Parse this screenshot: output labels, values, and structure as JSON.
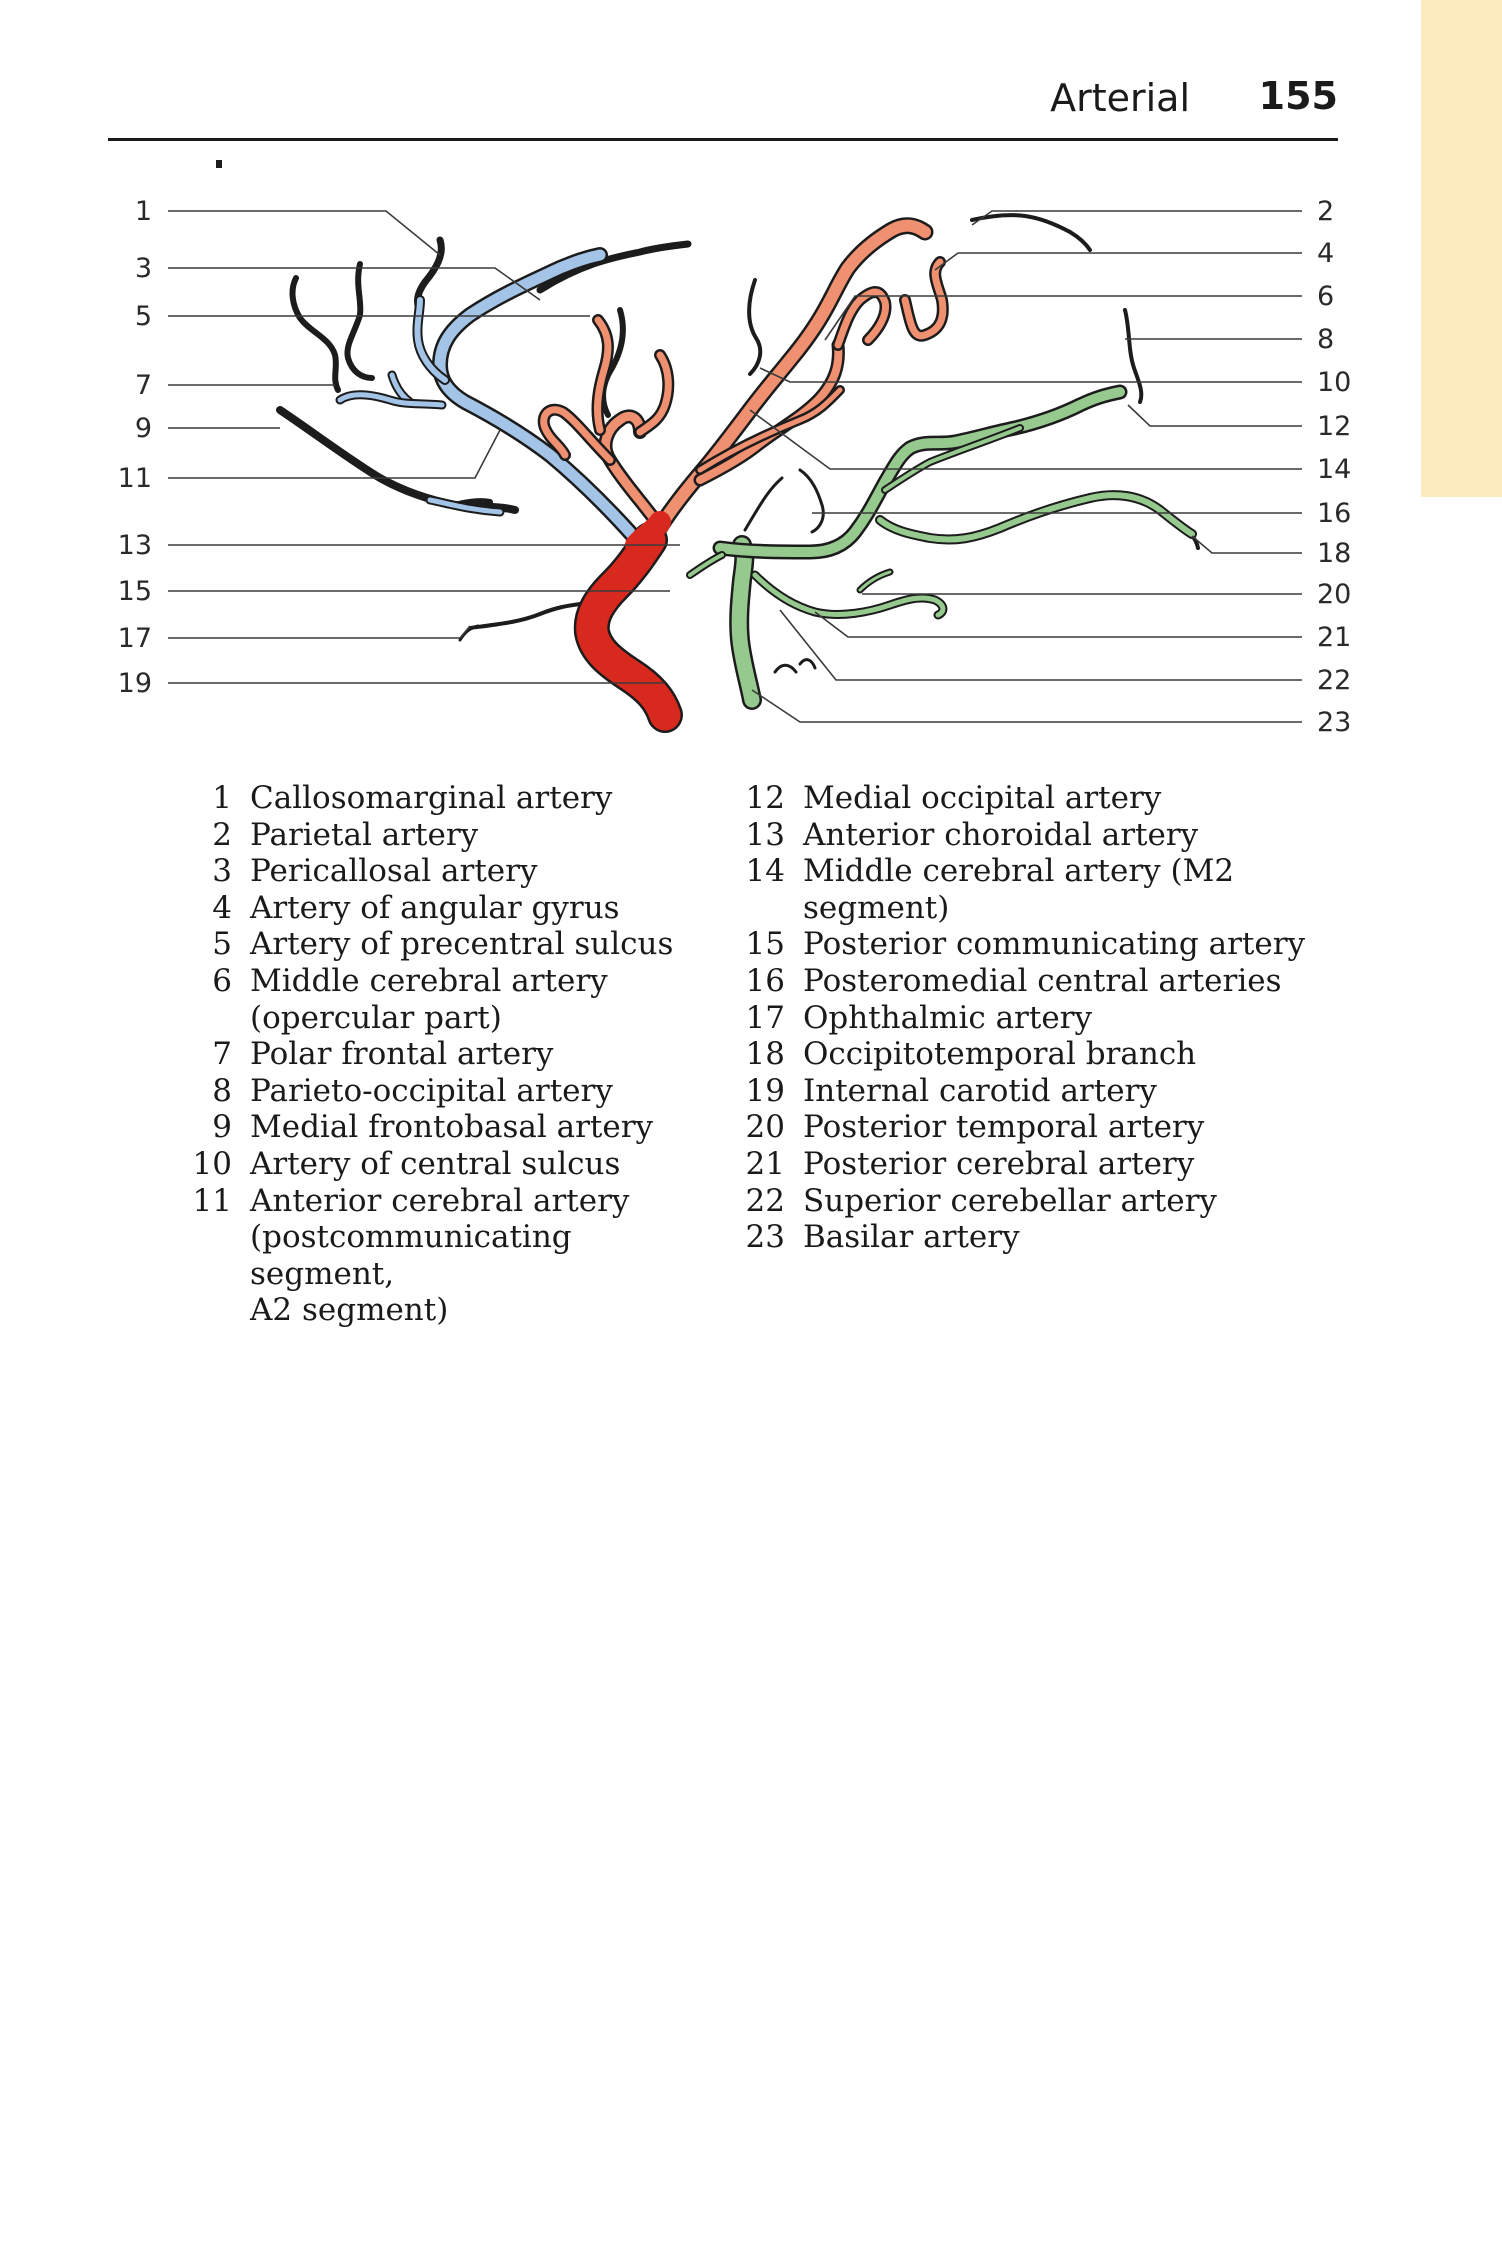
{
  "header": {
    "section": "Arterial",
    "page_number": "155"
  },
  "figure": {
    "colors": {
      "vessel_dark": "#1c1c1c",
      "anterior_cerebral": "#a3c4e6",
      "middle_cerebral": "#ef9071",
      "internal_carotid": "#d8291f",
      "posterior_circulation": "#95c98d"
    },
    "callouts_left": [
      "1",
      "3",
      "5",
      "7",
      "9",
      "11",
      "13",
      "15",
      "17",
      "19"
    ],
    "callouts_right": [
      "2",
      "4",
      "6",
      "8",
      "10",
      "12",
      "14",
      "16",
      "18",
      "20",
      "21",
      "22",
      "23"
    ]
  },
  "legend": {
    "left": [
      {
        "num": "1",
        "text": "Callosomarginal artery"
      },
      {
        "num": "2",
        "text": "Parietal artery"
      },
      {
        "num": "3",
        "text": "Pericallosal artery"
      },
      {
        "num": "4",
        "text": "Artery of angular gyrus"
      },
      {
        "num": "5",
        "text": "Artery of precentral sulcus"
      },
      {
        "num": "6",
        "text": "Middle cerebral artery\n(opercular part)"
      },
      {
        "num": "7",
        "text": "Polar frontal artery"
      },
      {
        "num": "8",
        "text": "Parieto-occipital artery"
      },
      {
        "num": "9",
        "text": "Medial frontobasal artery"
      },
      {
        "num": "10",
        "text": "Artery of central sulcus"
      },
      {
        "num": "11",
        "text": "Anterior cerebral artery\n(postcommunicating segment,\nA2 segment)"
      }
    ],
    "right": [
      {
        "num": "12",
        "text": "Medial occipital artery"
      },
      {
        "num": "13",
        "text": "Anterior choroidal artery"
      },
      {
        "num": "14",
        "text": "Middle cerebral artery (M2 segment)"
      },
      {
        "num": "15",
        "text": "Posterior communicating artery"
      },
      {
        "num": "16",
        "text": "Posteromedial central arteries"
      },
      {
        "num": "17",
        "text": "Ophthalmic artery"
      },
      {
        "num": "18",
        "text": "Occipitotemporal branch"
      },
      {
        "num": "19",
        "text": "Internal carotid artery"
      },
      {
        "num": "20",
        "text": "Posterior temporal artery"
      },
      {
        "num": "21",
        "text": "Posterior cerebral artery"
      },
      {
        "num": "22",
        "text": "Superior cerebellar artery"
      },
      {
        "num": "23",
        "text": "Basilar artery"
      }
    ]
  }
}
